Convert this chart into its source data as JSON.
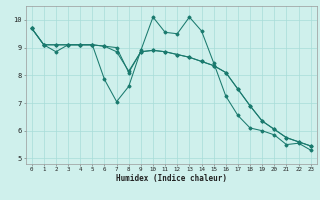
{
  "xlabel": "Humidex (Indice chaleur)",
  "bg_color": "#cff0ec",
  "grid_color": "#a8ddd8",
  "line_color": "#1a7a6e",
  "xlim": [
    -0.5,
    23.5
  ],
  "ylim": [
    4.8,
    10.5
  ],
  "xticks": [
    0,
    1,
    2,
    3,
    4,
    5,
    6,
    7,
    8,
    9,
    10,
    11,
    12,
    13,
    14,
    15,
    16,
    17,
    18,
    19,
    20,
    21,
    22,
    23
  ],
  "yticks": [
    5,
    6,
    7,
    8,
    9,
    10
  ],
  "line1_x": [
    0,
    1,
    2,
    3,
    4,
    5,
    6,
    7,
    8,
    9,
    10,
    11,
    12,
    13,
    14,
    15,
    16,
    17,
    18,
    19,
    20,
    21,
    22,
    23
  ],
  "line1_y": [
    9.7,
    9.1,
    8.85,
    9.1,
    9.1,
    9.1,
    7.85,
    7.05,
    7.6,
    8.9,
    10.1,
    9.55,
    9.5,
    10.1,
    9.6,
    8.45,
    7.25,
    6.55,
    6.1,
    6.0,
    5.85,
    5.5,
    5.55,
    5.3
  ],
  "line2_x": [
    0,
    1,
    2,
    3,
    4,
    5,
    6,
    7,
    8,
    9,
    10,
    11,
    12,
    13,
    14,
    15,
    16,
    17,
    18,
    19,
    20,
    21,
    22,
    23
  ],
  "line2_y": [
    9.7,
    9.1,
    9.1,
    9.1,
    9.1,
    9.1,
    9.05,
    9.0,
    8.1,
    8.85,
    8.9,
    8.85,
    8.75,
    8.65,
    8.5,
    8.35,
    8.1,
    7.5,
    6.9,
    6.35,
    6.05,
    5.75,
    5.6,
    5.45
  ],
  "line3_x": [
    0,
    1,
    2,
    3,
    4,
    5,
    6,
    7,
    8,
    9,
    10,
    11,
    12,
    13,
    14,
    15,
    16,
    17,
    18,
    19,
    20,
    21,
    22,
    23
  ],
  "line3_y": [
    9.7,
    9.1,
    9.1,
    9.1,
    9.1,
    9.1,
    9.05,
    8.85,
    8.15,
    8.85,
    8.9,
    8.85,
    8.75,
    8.65,
    8.5,
    8.35,
    8.1,
    7.5,
    6.9,
    6.35,
    6.05,
    5.75,
    5.6,
    5.45
  ]
}
